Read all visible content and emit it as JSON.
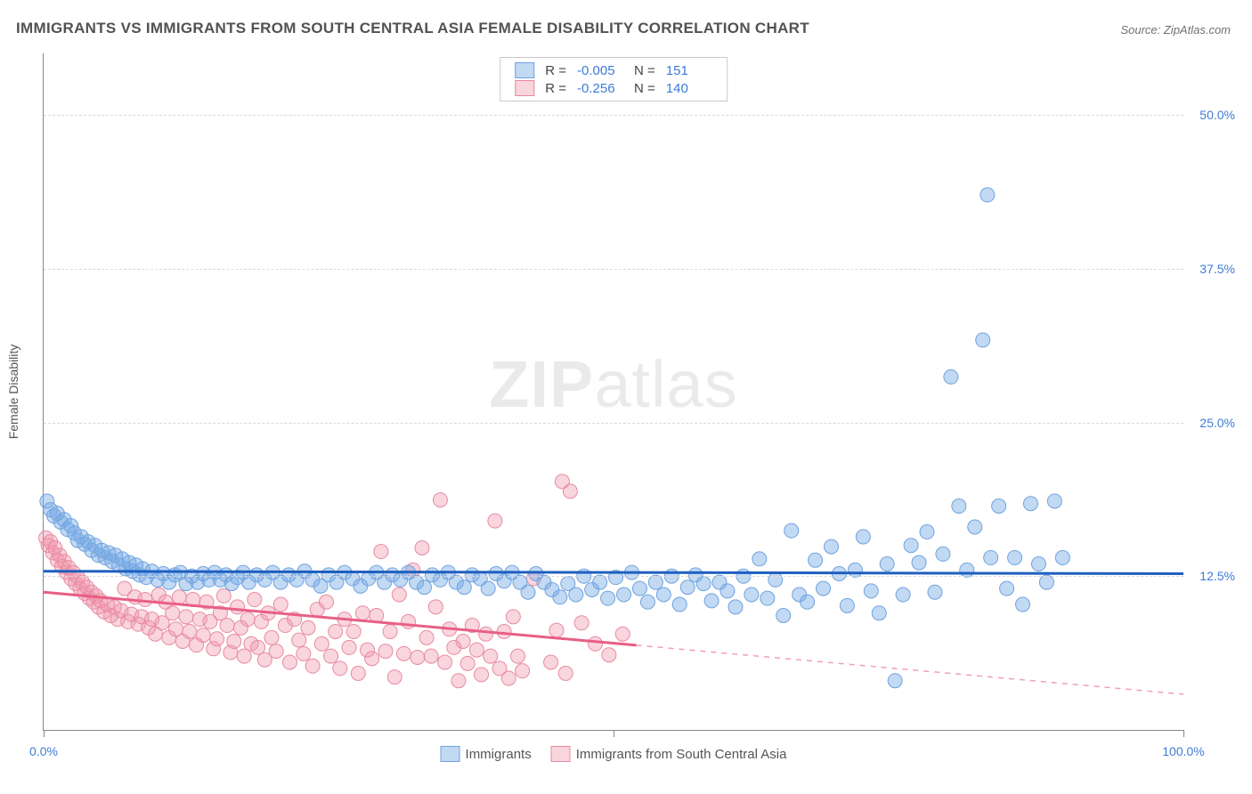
{
  "title": "IMMIGRANTS VS IMMIGRANTS FROM SOUTH CENTRAL ASIA FEMALE DISABILITY CORRELATION CHART",
  "source": "Source: ZipAtlas.com",
  "watermark": {
    "bold": "ZIP",
    "rest": "atlas"
  },
  "yaxis_title": "Female Disability",
  "colors": {
    "blue_fill": "rgba(120,170,230,0.45)",
    "blue_stroke": "#6fa3dd",
    "blue_line": "#1f5fbf",
    "pink_fill": "rgba(240,150,170,0.40)",
    "pink_stroke": "#e88aa3",
    "pink_line": "#e85f86",
    "axis_text": "#3d7bd9",
    "grid": "#d9d9d9"
  },
  "marker_radius": 8,
  "font_sizes": {
    "title": 17,
    "ticks": 14,
    "legend": 15,
    "watermark": 74
  },
  "xlim": [
    0,
    100
  ],
  "ylim": [
    0,
    55
  ],
  "y_gridlines": [
    12.5,
    25.0,
    37.5,
    50.0
  ],
  "y_tick_labels": [
    "12.5%",
    "25.0%",
    "37.5%",
    "50.0%"
  ],
  "x_ticks_at": [
    0,
    50,
    100
  ],
  "x_tick_labels_at": [
    [
      0,
      "0.0%"
    ],
    [
      100,
      "100.0%"
    ]
  ],
  "legend_top": {
    "rows": [
      {
        "swatch_fill": "rgba(120,170,230,0.45)",
        "swatch_stroke": "#6fa3dd",
        "R_label": "R =",
        "R": "-0.005",
        "N_label": "N =",
        "N": "151"
      },
      {
        "swatch_fill": "rgba(240,150,170,0.40)",
        "swatch_stroke": "#e88aa3",
        "R_label": "R =",
        "R": "-0.256",
        "N_label": "N =",
        "N": "140"
      }
    ]
  },
  "legend_bottom": {
    "items": [
      {
        "swatch_fill": "rgba(120,170,230,0.45)",
        "swatch_stroke": "#6fa3dd",
        "label": "Immigrants"
      },
      {
        "swatch_fill": "rgba(240,150,170,0.40)",
        "swatch_stroke": "#e88aa3",
        "label": "Immigrants from South Central Asia"
      }
    ]
  },
  "series": {
    "blue": {
      "trend": {
        "y_at_x0": 12.9,
        "y_at_x100": 12.7,
        "solid_from_x": 0,
        "solid_to_x": 100
      },
      "points": [
        [
          0.3,
          18.6
        ],
        [
          0.6,
          17.9
        ],
        [
          0.9,
          17.4
        ],
        [
          1.2,
          17.6
        ],
        [
          1.5,
          16.9
        ],
        [
          1.8,
          17.1
        ],
        [
          2.1,
          16.3
        ],
        [
          2.4,
          16.6
        ],
        [
          2.7,
          16.0
        ],
        [
          3.0,
          15.4
        ],
        [
          3.3,
          15.7
        ],
        [
          3.6,
          15.1
        ],
        [
          3.9,
          15.3
        ],
        [
          4.2,
          14.6
        ],
        [
          4.5,
          15.0
        ],
        [
          4.8,
          14.2
        ],
        [
          5.1,
          14.6
        ],
        [
          5.4,
          14.0
        ],
        [
          5.7,
          14.4
        ],
        [
          6.0,
          13.7
        ],
        [
          6.3,
          14.2
        ],
        [
          6.6,
          13.4
        ],
        [
          6.9,
          13.9
        ],
        [
          7.2,
          13.1
        ],
        [
          7.5,
          13.6
        ],
        [
          7.8,
          12.9
        ],
        [
          8.1,
          13.4
        ],
        [
          8.4,
          12.6
        ],
        [
          8.7,
          13.1
        ],
        [
          9.0,
          12.4
        ],
        [
          9.5,
          12.9
        ],
        [
          10.0,
          12.2
        ],
        [
          10.5,
          12.7
        ],
        [
          11.0,
          12.0
        ],
        [
          11.5,
          12.6
        ],
        [
          12.0,
          12.8
        ],
        [
          12.5,
          11.9
        ],
        [
          13.0,
          12.5
        ],
        [
          13.5,
          12.0
        ],
        [
          14.0,
          12.7
        ],
        [
          14.5,
          12.2
        ],
        [
          15.0,
          12.8
        ],
        [
          15.5,
          12.2
        ],
        [
          16.0,
          12.6
        ],
        [
          16.5,
          11.9
        ],
        [
          17.0,
          12.4
        ],
        [
          17.5,
          12.8
        ],
        [
          18.0,
          12.0
        ],
        [
          18.7,
          12.6
        ],
        [
          19.4,
          12.2
        ],
        [
          20.1,
          12.8
        ],
        [
          20.8,
          12.0
        ],
        [
          21.5,
          12.6
        ],
        [
          22.2,
          12.2
        ],
        [
          22.9,
          12.9
        ],
        [
          23.6,
          12.2
        ],
        [
          24.3,
          11.7
        ],
        [
          25.0,
          12.6
        ],
        [
          25.7,
          12.0
        ],
        [
          26.4,
          12.8
        ],
        [
          27.1,
          12.3
        ],
        [
          27.8,
          11.7
        ],
        [
          28.5,
          12.3
        ],
        [
          29.2,
          12.8
        ],
        [
          29.9,
          12.0
        ],
        [
          30.6,
          12.6
        ],
        [
          31.3,
          12.2
        ],
        [
          32.0,
          12.8
        ],
        [
          32.7,
          12.0
        ],
        [
          33.4,
          11.6
        ],
        [
          34.1,
          12.6
        ],
        [
          34.8,
          12.2
        ],
        [
          35.5,
          12.8
        ],
        [
          36.2,
          12.0
        ],
        [
          36.9,
          11.6
        ],
        [
          37.6,
          12.6
        ],
        [
          38.3,
          12.3
        ],
        [
          39.0,
          11.5
        ],
        [
          39.7,
          12.7
        ],
        [
          40.4,
          12.1
        ],
        [
          41.1,
          12.8
        ],
        [
          41.8,
          12.0
        ],
        [
          42.5,
          11.2
        ],
        [
          43.2,
          12.7
        ],
        [
          43.9,
          12.0
        ],
        [
          44.6,
          11.4
        ],
        [
          45.3,
          10.8
        ],
        [
          46.0,
          11.9
        ],
        [
          46.7,
          11.0
        ],
        [
          47.4,
          12.5
        ],
        [
          48.1,
          11.4
        ],
        [
          48.8,
          12.0
        ],
        [
          49.5,
          10.7
        ],
        [
          50.2,
          12.4
        ],
        [
          50.9,
          11.0
        ],
        [
          51.6,
          12.8
        ],
        [
          52.3,
          11.5
        ],
        [
          53.0,
          10.4
        ],
        [
          53.7,
          12.0
        ],
        [
          54.4,
          11.0
        ],
        [
          55.1,
          12.5
        ],
        [
          55.8,
          10.2
        ],
        [
          56.5,
          11.6
        ],
        [
          57.2,
          12.6
        ],
        [
          57.9,
          11.9
        ],
        [
          58.6,
          10.5
        ],
        [
          59.3,
          12.0
        ],
        [
          60.0,
          11.3
        ],
        [
          60.7,
          10.0
        ],
        [
          61.4,
          12.5
        ],
        [
          62.1,
          11.0
        ],
        [
          62.8,
          13.9
        ],
        [
          63.5,
          10.7
        ],
        [
          64.2,
          12.2
        ],
        [
          64.9,
          9.3
        ],
        [
          65.6,
          16.2
        ],
        [
          66.3,
          11.0
        ],
        [
          67.0,
          10.4
        ],
        [
          67.7,
          13.8
        ],
        [
          68.4,
          11.5
        ],
        [
          69.1,
          14.9
        ],
        [
          69.8,
          12.7
        ],
        [
          70.5,
          10.1
        ],
        [
          71.2,
          13.0
        ],
        [
          71.9,
          15.7
        ],
        [
          72.6,
          11.3
        ],
        [
          73.3,
          9.5
        ],
        [
          74.0,
          13.5
        ],
        [
          74.7,
          4.0
        ],
        [
          75.4,
          11.0
        ],
        [
          76.1,
          15.0
        ],
        [
          76.8,
          13.6
        ],
        [
          77.5,
          16.1
        ],
        [
          78.2,
          11.2
        ],
        [
          78.9,
          14.3
        ],
        [
          79.6,
          28.7
        ],
        [
          80.3,
          18.2
        ],
        [
          81.0,
          13.0
        ],
        [
          81.7,
          16.5
        ],
        [
          82.4,
          31.7
        ],
        [
          83.1,
          14.0
        ],
        [
          83.8,
          18.2
        ],
        [
          82.8,
          43.5
        ],
        [
          84.5,
          11.5
        ],
        [
          85.2,
          14.0
        ],
        [
          85.9,
          10.2
        ],
        [
          86.6,
          18.4
        ],
        [
          87.3,
          13.5
        ],
        [
          88.0,
          12.0
        ],
        [
          88.7,
          18.6
        ],
        [
          89.4,
          14.0
        ]
      ]
    },
    "pink": {
      "trend": {
        "y_at_x0": 11.2,
        "y_at_x100": 2.9,
        "solid_from_x": 0,
        "solid_to_x": 52
      },
      "points": [
        [
          0.2,
          15.6
        ],
        [
          0.4,
          15.0
        ],
        [
          0.6,
          15.3
        ],
        [
          0.8,
          14.4
        ],
        [
          1.0,
          14.8
        ],
        [
          1.2,
          13.8
        ],
        [
          1.4,
          14.2
        ],
        [
          1.6,
          13.3
        ],
        [
          1.8,
          13.7
        ],
        [
          2.0,
          12.8
        ],
        [
          2.2,
          13.2
        ],
        [
          2.4,
          12.3
        ],
        [
          2.6,
          12.8
        ],
        [
          2.8,
          11.9
        ],
        [
          3.0,
          12.4
        ],
        [
          3.2,
          11.5
        ],
        [
          3.4,
          12.0
        ],
        [
          3.6,
          11.1
        ],
        [
          3.8,
          11.6
        ],
        [
          4.0,
          10.7
        ],
        [
          4.2,
          11.2
        ],
        [
          4.4,
          10.4
        ],
        [
          4.6,
          10.9
        ],
        [
          4.8,
          10.0
        ],
        [
          5.0,
          10.5
        ],
        [
          5.3,
          9.6
        ],
        [
          5.6,
          10.2
        ],
        [
          5.9,
          9.3
        ],
        [
          6.2,
          10.0
        ],
        [
          6.5,
          9.0
        ],
        [
          6.8,
          9.7
        ],
        [
          7.1,
          11.5
        ],
        [
          7.4,
          8.8
        ],
        [
          7.7,
          9.4
        ],
        [
          8.0,
          10.8
        ],
        [
          8.3,
          8.6
        ],
        [
          8.6,
          9.2
        ],
        [
          8.9,
          10.6
        ],
        [
          9.2,
          8.3
        ],
        [
          9.5,
          9.0
        ],
        [
          9.8,
          7.8
        ],
        [
          10.1,
          11.0
        ],
        [
          10.4,
          8.7
        ],
        [
          10.7,
          10.4
        ],
        [
          11.0,
          7.5
        ],
        [
          11.3,
          9.5
        ],
        [
          11.6,
          8.2
        ],
        [
          11.9,
          10.8
        ],
        [
          12.2,
          7.2
        ],
        [
          12.5,
          9.2
        ],
        [
          12.8,
          8.0
        ],
        [
          13.1,
          10.6
        ],
        [
          13.4,
          6.9
        ],
        [
          13.7,
          9.0
        ],
        [
          14.0,
          7.7
        ],
        [
          14.3,
          10.4
        ],
        [
          14.6,
          8.8
        ],
        [
          14.9,
          6.6
        ],
        [
          15.2,
          7.4
        ],
        [
          15.5,
          9.5
        ],
        [
          15.8,
          10.9
        ],
        [
          16.1,
          8.5
        ],
        [
          16.4,
          6.3
        ],
        [
          16.7,
          7.2
        ],
        [
          17.0,
          10.0
        ],
        [
          17.3,
          8.3
        ],
        [
          17.6,
          6.0
        ],
        [
          17.9,
          9.0
        ],
        [
          18.2,
          7.0
        ],
        [
          18.5,
          10.6
        ],
        [
          18.8,
          6.7
        ],
        [
          19.1,
          8.8
        ],
        [
          19.4,
          5.7
        ],
        [
          19.7,
          9.5
        ],
        [
          20.0,
          7.5
        ],
        [
          20.4,
          6.4
        ],
        [
          20.8,
          10.2
        ],
        [
          21.2,
          8.5
        ],
        [
          21.6,
          5.5
        ],
        [
          22.0,
          9.0
        ],
        [
          22.4,
          7.3
        ],
        [
          22.8,
          6.2
        ],
        [
          23.2,
          8.3
        ],
        [
          23.6,
          5.2
        ],
        [
          24.0,
          9.8
        ],
        [
          24.4,
          7.0
        ],
        [
          24.8,
          10.4
        ],
        [
          25.2,
          6.0
        ],
        [
          25.6,
          8.0
        ],
        [
          26.0,
          5.0
        ],
        [
          26.4,
          9.0
        ],
        [
          26.8,
          6.7
        ],
        [
          27.2,
          8.0
        ],
        [
          27.6,
          4.6
        ],
        [
          28.0,
          9.5
        ],
        [
          28.4,
          6.5
        ],
        [
          28.8,
          5.8
        ],
        [
          29.2,
          9.3
        ],
        [
          29.6,
          14.5
        ],
        [
          30.0,
          6.4
        ],
        [
          30.4,
          8.0
        ],
        [
          30.8,
          4.3
        ],
        [
          31.2,
          11.0
        ],
        [
          31.6,
          6.2
        ],
        [
          32.0,
          8.8
        ],
        [
          32.4,
          13.0
        ],
        [
          32.8,
          5.9
        ],
        [
          33.2,
          14.8
        ],
        [
          33.6,
          7.5
        ],
        [
          34.0,
          6.0
        ],
        [
          34.4,
          10.0
        ],
        [
          34.8,
          18.7
        ],
        [
          35.2,
          5.5
        ],
        [
          35.6,
          8.2
        ],
        [
          36.0,
          6.7
        ],
        [
          36.4,
          4.0
        ],
        [
          36.8,
          7.2
        ],
        [
          37.2,
          5.4
        ],
        [
          37.6,
          8.5
        ],
        [
          38.0,
          6.5
        ],
        [
          38.4,
          4.5
        ],
        [
          38.8,
          7.8
        ],
        [
          39.2,
          6.0
        ],
        [
          39.6,
          17.0
        ],
        [
          40.0,
          5.0
        ],
        [
          40.4,
          8.0
        ],
        [
          40.8,
          4.2
        ],
        [
          41.2,
          9.2
        ],
        [
          41.6,
          6.0
        ],
        [
          42.0,
          4.8
        ],
        [
          43.0,
          12.3
        ],
        [
          44.5,
          5.5
        ],
        [
          45.0,
          8.1
        ],
        [
          45.5,
          20.2
        ],
        [
          45.8,
          4.6
        ],
        [
          46.2,
          19.4
        ],
        [
          47.2,
          8.7
        ],
        [
          48.4,
          7.0
        ],
        [
          49.6,
          6.1
        ],
        [
          50.8,
          7.8
        ]
      ]
    }
  }
}
